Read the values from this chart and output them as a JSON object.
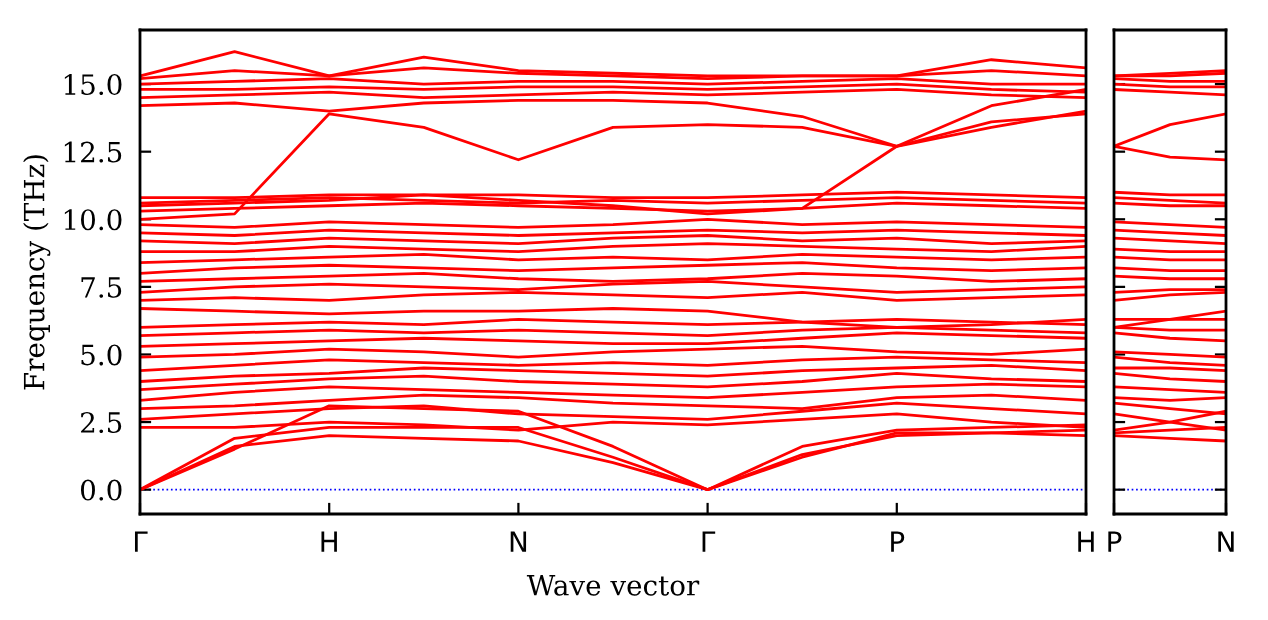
{
  "chart_data": [
    {
      "type": "line",
      "xlabel": "Wave vector",
      "ylabel": "Frequency (THz)",
      "grid": false,
      "legend": false,
      "marker": "none",
      "line_style": "solid",
      "categories": [
        "Γ",
        null,
        "H",
        null,
        "N",
        null,
        "Γ",
        null,
        "P",
        null,
        "H"
      ],
      "ylim": [
        -0.9,
        17.0
      ],
      "yticks": [
        {
          "value": 0,
          "label": "0.0"
        },
        {
          "value": 2.5,
          "label": "2.5"
        },
        {
          "value": 5,
          "label": "5.0"
        },
        {
          "value": 7.5,
          "label": "7.5"
        },
        {
          "value": 10,
          "label": "10.0"
        },
        {
          "value": 12.5,
          "label": "12.5"
        },
        {
          "value": 15,
          "label": "15.0"
        }
      ],
      "ref_lines": [
        {
          "axis": "y",
          "value": 0,
          "color": "#0000ff",
          "line_style": "dotted"
        }
      ],
      "series": [
        {
          "color": "#ff0000",
          "values": [
            0,
            1.6,
            2.0,
            1.9,
            1.8,
            1.0,
            0,
            1.3,
            2.0,
            2.1,
            2.2
          ]
        },
        {
          "color": "#ff0000",
          "values": [
            0,
            1.9,
            2.3,
            2.3,
            2.3,
            1.2,
            0,
            1.2,
            2.1,
            2.1,
            2.0
          ]
        },
        {
          "color": "#ff0000",
          "values": [
            0,
            1.5,
            3.1,
            3.0,
            2.9,
            1.6,
            0,
            1.6,
            2.2,
            2.3,
            2.4
          ]
        },
        {
          "color": "#ff0000",
          "values": [
            2.3,
            2.3,
            2.5,
            2.4,
            2.2,
            2.5,
            2.4,
            2.6,
            2.8,
            2.5,
            2.3
          ]
        },
        {
          "color": "#ff0000",
          "values": [
            2.6,
            2.8,
            3.0,
            3.1,
            2.8,
            2.7,
            2.6,
            2.9,
            3.2,
            3.0,
            2.8
          ]
        },
        {
          "color": "#ff0000",
          "values": [
            3.0,
            3.1,
            3.3,
            3.5,
            3.4,
            3.2,
            3.1,
            3.0,
            3.4,
            3.5,
            3.3
          ]
        },
        {
          "color": "#ff0000",
          "values": [
            3.3,
            3.6,
            3.8,
            3.7,
            3.6,
            3.5,
            3.4,
            3.6,
            3.8,
            3.9,
            3.8
          ]
        },
        {
          "color": "#ff0000",
          "values": [
            3.7,
            3.9,
            4.1,
            4.2,
            4.0,
            3.9,
            3.8,
            4.0,
            4.3,
            4.1,
            4.0
          ]
        },
        {
          "color": "#ff0000",
          "values": [
            4.0,
            4.2,
            4.3,
            4.5,
            4.4,
            4.3,
            4.2,
            4.4,
            4.5,
            4.6,
            4.4
          ]
        },
        {
          "color": "#ff0000",
          "values": [
            4.4,
            4.6,
            4.8,
            4.7,
            4.6,
            4.7,
            4.6,
            4.8,
            4.9,
            4.8,
            4.7
          ]
        },
        {
          "color": "#ff0000",
          "values": [
            4.9,
            5.0,
            5.2,
            5.1,
            4.9,
            5.1,
            5.2,
            5.3,
            5.1,
            5.0,
            5.2
          ]
        },
        {
          "color": "#ff0000",
          "values": [
            5.3,
            5.4,
            5.5,
            5.6,
            5.5,
            5.4,
            5.4,
            5.6,
            5.8,
            5.7,
            5.6
          ]
        },
        {
          "color": "#ff0000",
          "values": [
            5.7,
            5.8,
            5.9,
            5.8,
            5.9,
            5.8,
            5.7,
            5.9,
            6.0,
            5.9,
            5.8
          ]
        },
        {
          "color": "#ff0000",
          "values": [
            6.0,
            6.1,
            6.2,
            6.1,
            6.3,
            6.2,
            6.1,
            6.2,
            6.3,
            6.2,
            6.1
          ]
        },
        {
          "color": "#ff0000",
          "values": [
            6.7,
            6.6,
            6.5,
            6.6,
            6.6,
            6.7,
            6.6,
            6.2,
            6.0,
            6.1,
            6.3
          ]
        },
        {
          "color": "#ff0000",
          "values": [
            7.0,
            7.1,
            7.0,
            7.2,
            7.3,
            7.2,
            7.1,
            7.3,
            7.0,
            7.1,
            7.2
          ]
        },
        {
          "color": "#ff0000",
          "values": [
            7.3,
            7.5,
            7.6,
            7.5,
            7.4,
            7.6,
            7.7,
            7.5,
            7.3,
            7.4,
            7.5
          ]
        },
        {
          "color": "#ff0000",
          "values": [
            7.7,
            7.8,
            7.9,
            8.0,
            7.8,
            7.7,
            7.8,
            8.0,
            7.9,
            7.7,
            7.8
          ]
        },
        {
          "color": "#ff0000",
          "values": [
            8.0,
            8.2,
            8.3,
            8.2,
            8.1,
            8.2,
            8.3,
            8.4,
            8.2,
            8.1,
            8.2
          ]
        },
        {
          "color": "#ff0000",
          "values": [
            8.4,
            8.5,
            8.6,
            8.7,
            8.5,
            8.6,
            8.5,
            8.7,
            8.6,
            8.5,
            8.6
          ]
        },
        {
          "color": "#ff0000",
          "values": [
            8.8,
            8.8,
            9.0,
            8.9,
            8.8,
            9.0,
            9.1,
            9.0,
            8.9,
            8.8,
            9.0
          ]
        },
        {
          "color": "#ff0000",
          "values": [
            9.2,
            9.1,
            9.3,
            9.2,
            9.1,
            9.3,
            9.4,
            9.2,
            9.3,
            9.1,
            9.2
          ]
        },
        {
          "color": "#ff0000",
          "values": [
            9.5,
            9.4,
            9.6,
            9.5,
            9.4,
            9.5,
            9.6,
            9.5,
            9.6,
            9.5,
            9.4
          ]
        },
        {
          "color": "#ff0000",
          "values": [
            9.8,
            9.7,
            9.9,
            9.8,
            9.7,
            9.8,
            10.0,
            9.8,
            9.9,
            9.8,
            9.7
          ]
        },
        {
          "color": "#ff0000",
          "values": [
            10.3,
            10.4,
            10.5,
            10.6,
            10.5,
            10.4,
            10.3,
            10.4,
            10.6,
            10.5,
            10.4
          ]
        },
        {
          "color": "#ff0000",
          "values": [
            10.6,
            10.7,
            10.8,
            10.7,
            10.6,
            10.7,
            10.6,
            10.7,
            10.8,
            10.7,
            10.6
          ]
        },
        {
          "color": "#ff0000",
          "values": [
            10.8,
            10.8,
            10.9,
            10.9,
            10.9,
            10.8,
            10.8,
            10.9,
            11.0,
            10.9,
            10.8
          ]
        },
        {
          "color": "#ff0000",
          "values": [
            10.0,
            10.2,
            13.9,
            13.4,
            12.2,
            13.4,
            13.5,
            13.4,
            12.7,
            13.4,
            14.0
          ]
        },
        {
          "color": "#ff0000",
          "values": [
            14.2,
            14.3,
            14.0,
            14.3,
            14.4,
            14.4,
            14.3,
            13.8,
            12.7,
            13.6,
            13.9
          ]
        },
        {
          "color": "#ff0000",
          "values": [
            10.5,
            10.6,
            10.7,
            10.9,
            10.7,
            10.5,
            10.2,
            10.4,
            12.7,
            14.2,
            14.8
          ]
        },
        {
          "color": "#ff0000",
          "values": [
            14.5,
            14.6,
            14.7,
            14.5,
            14.6,
            14.7,
            14.6,
            14.7,
            14.8,
            14.6,
            14.5
          ]
        },
        {
          "color": "#ff0000",
          "values": [
            14.8,
            14.8,
            14.9,
            14.8,
            14.9,
            14.9,
            14.8,
            14.9,
            15.0,
            14.8,
            14.7
          ]
        },
        {
          "color": "#ff0000",
          "values": [
            15.0,
            15.1,
            15.2,
            15.0,
            15.1,
            15.1,
            15.0,
            15.1,
            15.2,
            15.0,
            15.0
          ]
        },
        {
          "color": "#ff0000",
          "values": [
            15.2,
            15.5,
            15.3,
            15.6,
            15.4,
            15.3,
            15.2,
            15.3,
            15.3,
            15.5,
            15.3
          ]
        },
        {
          "color": "#ff0000",
          "values": [
            15.3,
            16.2,
            15.3,
            16.0,
            15.5,
            15.4,
            15.3,
            15.3,
            15.3,
            15.9,
            15.6
          ]
        }
      ]
    },
    {
      "type": "line",
      "grid": false,
      "legend": false,
      "marker": "none",
      "line_style": "solid",
      "tick_labels": "x",
      "categories": [
        "P",
        null,
        "N"
      ],
      "ylim": [
        -0.9,
        17.0
      ],
      "yticks": [
        {
          "value": 0,
          "label": null
        },
        {
          "value": 2.5,
          "label": null
        },
        {
          "value": 5,
          "label": null
        },
        {
          "value": 7.5,
          "label": null
        },
        {
          "value": 10,
          "label": null
        },
        {
          "value": 12.5,
          "label": null
        },
        {
          "value": 15,
          "label": null
        }
      ],
      "ref_lines": [
        {
          "axis": "y",
          "value": 0,
          "color": "#0000ff",
          "line_style": "dotted"
        }
      ],
      "series": [
        {
          "color": "#ff0000",
          "values": [
            2.0,
            1.9,
            1.8
          ]
        },
        {
          "color": "#ff0000",
          "values": [
            2.1,
            2.2,
            2.3
          ]
        },
        {
          "color": "#ff0000",
          "values": [
            2.2,
            2.5,
            2.9
          ]
        },
        {
          "color": "#ff0000",
          "values": [
            2.8,
            2.5,
            2.2
          ]
        },
        {
          "color": "#ff0000",
          "values": [
            3.2,
            3.0,
            2.8
          ]
        },
        {
          "color": "#ff0000",
          "values": [
            3.4,
            3.3,
            3.4
          ]
        },
        {
          "color": "#ff0000",
          "values": [
            3.8,
            3.7,
            3.6
          ]
        },
        {
          "color": "#ff0000",
          "values": [
            4.3,
            4.1,
            4.0
          ]
        },
        {
          "color": "#ff0000",
          "values": [
            4.5,
            4.5,
            4.4
          ]
        },
        {
          "color": "#ff0000",
          "values": [
            4.9,
            4.7,
            4.6
          ]
        },
        {
          "color": "#ff0000",
          "values": [
            5.1,
            5.0,
            4.9
          ]
        },
        {
          "color": "#ff0000",
          "values": [
            5.8,
            5.6,
            5.5
          ]
        },
        {
          "color": "#ff0000",
          "values": [
            6.0,
            5.9,
            5.9
          ]
        },
        {
          "color": "#ff0000",
          "values": [
            6.3,
            6.3,
            6.3
          ]
        },
        {
          "color": "#ff0000",
          "values": [
            6.0,
            6.3,
            6.6
          ]
        },
        {
          "color": "#ff0000",
          "values": [
            7.0,
            7.2,
            7.3
          ]
        },
        {
          "color": "#ff0000",
          "values": [
            7.3,
            7.4,
            7.4
          ]
        },
        {
          "color": "#ff0000",
          "values": [
            7.9,
            7.8,
            7.8
          ]
        },
        {
          "color": "#ff0000",
          "values": [
            8.2,
            8.1,
            8.1
          ]
        },
        {
          "color": "#ff0000",
          "values": [
            8.6,
            8.5,
            8.5
          ]
        },
        {
          "color": "#ff0000",
          "values": [
            8.9,
            8.8,
            8.8
          ]
        },
        {
          "color": "#ff0000",
          "values": [
            9.3,
            9.2,
            9.1
          ]
        },
        {
          "color": "#ff0000",
          "values": [
            9.6,
            9.5,
            9.4
          ]
        },
        {
          "color": "#ff0000",
          "values": [
            9.9,
            9.8,
            9.7
          ]
        },
        {
          "color": "#ff0000",
          "values": [
            10.6,
            10.5,
            10.5
          ]
        },
        {
          "color": "#ff0000",
          "values": [
            10.8,
            10.7,
            10.6
          ]
        },
        {
          "color": "#ff0000",
          "values": [
            11.0,
            10.9,
            10.9
          ]
        },
        {
          "color": "#ff0000",
          "values": [
            12.7,
            12.3,
            12.2
          ]
        },
        {
          "color": "#ff0000",
          "values": [
            12.7,
            13.5,
            13.9
          ]
        },
        {
          "color": "#ff0000",
          "values": [
            14.8,
            14.7,
            14.6
          ]
        },
        {
          "color": "#ff0000",
          "values": [
            15.0,
            14.9,
            14.9
          ]
        },
        {
          "color": "#ff0000",
          "values": [
            15.2,
            15.1,
            15.1
          ]
        },
        {
          "color": "#ff0000",
          "values": [
            15.3,
            15.3,
            15.4
          ]
        },
        {
          "color": "#ff0000",
          "values": [
            15.3,
            15.4,
            15.5
          ]
        }
      ]
    }
  ]
}
